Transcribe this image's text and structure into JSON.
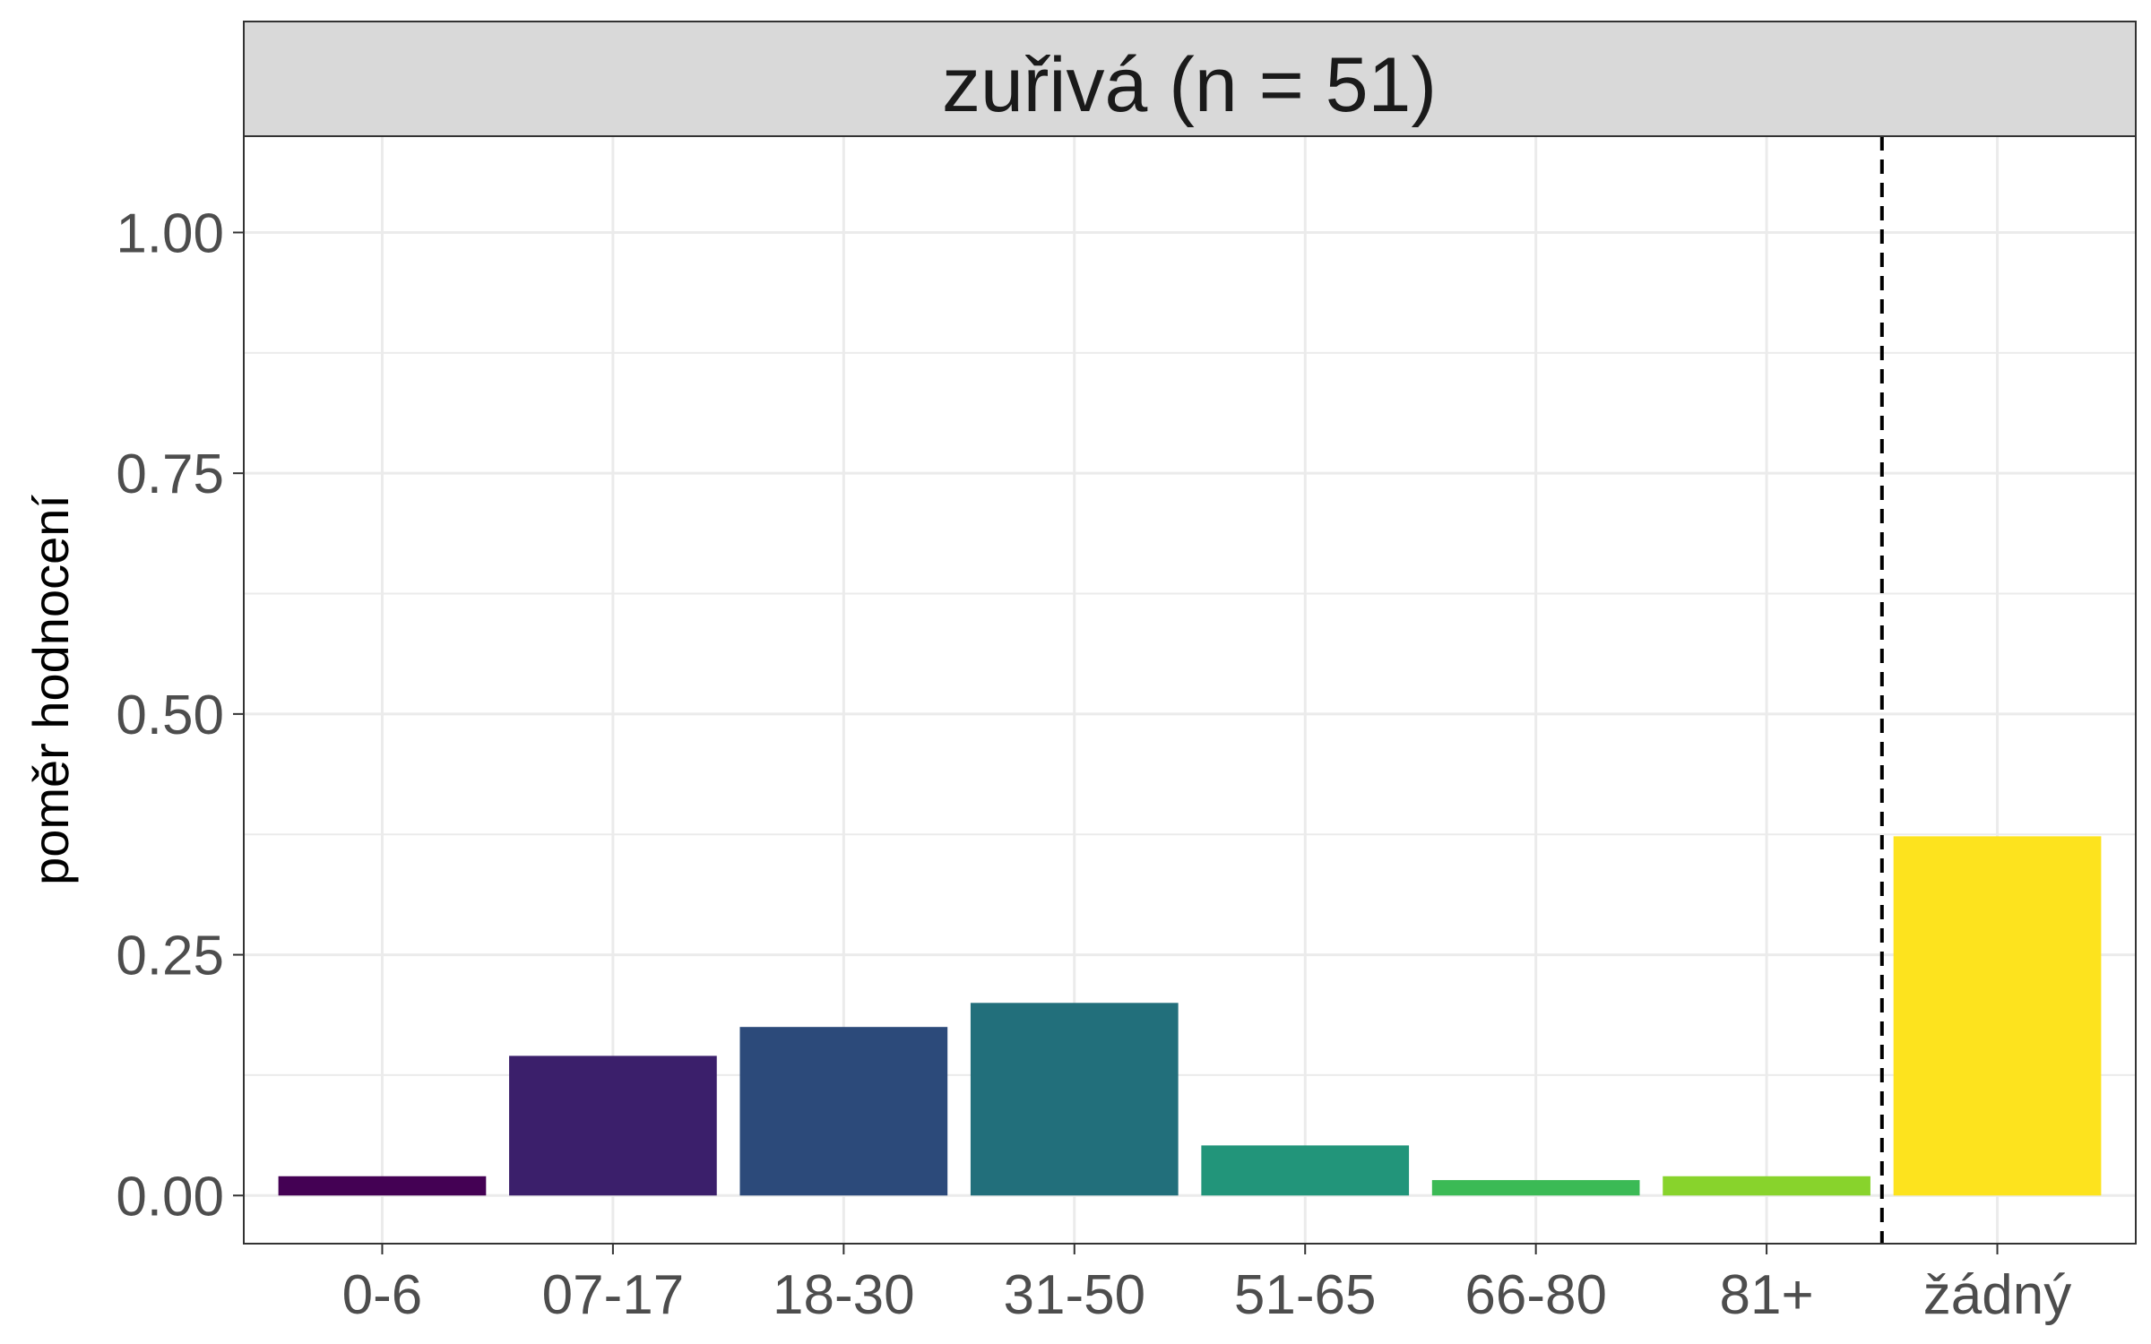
{
  "chart_data": {
    "type": "bar",
    "facet_title": "zuřivá (n = 51)",
    "ylabel": "poměr hodnocení",
    "xlabel": "",
    "categories": [
      "0-6",
      "07-17",
      "18-30",
      "31-50",
      "51-65",
      "66-80",
      "81+",
      "žádný"
    ],
    "values": [
      0.02,
      0.145,
      0.175,
      0.2,
      0.052,
      0.016,
      0.02,
      0.373
    ],
    "colors": [
      "#440154",
      "#3b1f6b",
      "#2c4a7a",
      "#226f7b",
      "#22957a",
      "#3bba55",
      "#88d32c",
      "#fde31e"
    ],
    "ylim": [
      -0.05,
      1.1
    ],
    "yticks": [
      0.0,
      0.25,
      0.5,
      0.75,
      1.0
    ],
    "ytick_labels": [
      "0.00",
      "0.25",
      "0.50",
      "0.75",
      "1.00"
    ],
    "reference_line": {
      "between": [
        "81+",
        "žádný"
      ],
      "style": "dashed"
    },
    "grid": true,
    "theme": "bw"
  }
}
